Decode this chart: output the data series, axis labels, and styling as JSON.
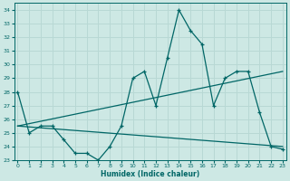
{
  "title": "",
  "xlabel": "Humidex (Indice chaleur)",
  "bg_color": "#cde8e4",
  "line_color": "#006666",
  "grid_color": "#b8d8d4",
  "x_ticks": [
    0,
    1,
    2,
    3,
    4,
    5,
    6,
    7,
    8,
    9,
    10,
    11,
    12,
    13,
    14,
    15,
    16,
    17,
    18,
    19,
    20,
    21,
    22,
    23
  ],
  "ylim": [
    23,
    34.5
  ],
  "yticks": [
    23,
    24,
    25,
    26,
    27,
    28,
    29,
    30,
    31,
    32,
    33,
    34
  ],
  "xlim": [
    -0.3,
    23.3
  ],
  "series1_x": [
    0,
    1,
    2,
    3,
    4,
    5,
    6,
    7,
    8,
    9,
    10,
    11,
    12,
    13,
    14,
    15,
    16,
    17,
    18,
    19,
    20,
    21,
    22,
    23
  ],
  "series1_y": [
    28,
    25,
    25.5,
    25.5,
    24.5,
    23.5,
    23.5,
    23,
    24,
    25.5,
    29,
    29.5,
    27,
    30.5,
    34,
    32.5,
    31.5,
    27,
    29,
    29.5,
    29.5,
    26.5,
    24,
    23.8
  ],
  "series2_x": [
    0,
    23
  ],
  "series2_y": [
    25.5,
    29.5
  ],
  "series3_x": [
    0,
    23
  ],
  "series3_y": [
    25.5,
    24.0
  ]
}
